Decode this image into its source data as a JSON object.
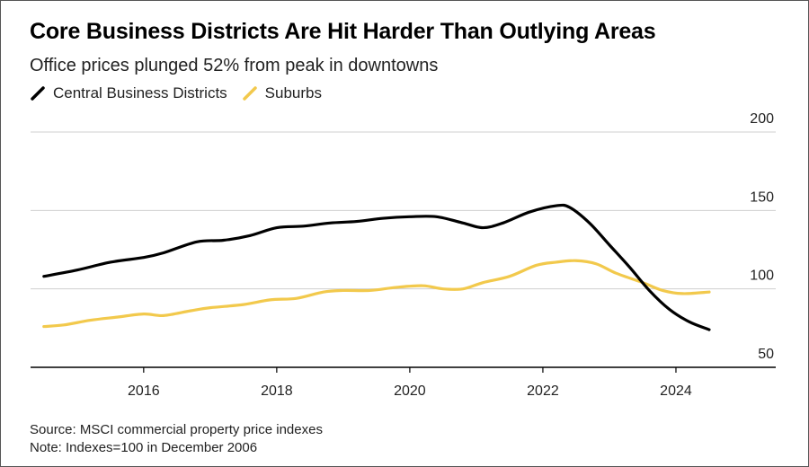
{
  "header": {
    "title": "Core Business Districts Are Hit Harder Than Outlying Areas",
    "subtitle": "Office prices plunged 52% from peak in downtowns"
  },
  "legend": [
    {
      "label": "Central Business Districts",
      "color": "#000000"
    },
    {
      "label": "Suburbs",
      "color": "#f2c94c"
    }
  ],
  "footer": {
    "source": "Source: MSCI commercial property price indexes",
    "note": "Note: Indexes=100 in December 2006"
  },
  "chart_data": {
    "type": "line",
    "title": "Core Business Districts Are Hit Harder Than Outlying Areas",
    "subtitle": "Office prices plunged 52% from peak in downtowns",
    "xlabel": "",
    "ylabel": "",
    "xlim": [
      2014.3,
      2025.5
    ],
    "ylim": [
      50,
      200
    ],
    "x_ticks": [
      2016,
      2018,
      2020,
      2022,
      2024
    ],
    "y_ticks": [
      50,
      100,
      150,
      200
    ],
    "y_axis_position": "right",
    "grid": true,
    "legend_position": "top-left",
    "series": [
      {
        "name": "Central Business Districts",
        "color": "#000000",
        "points": [
          [
            2014.5,
            108
          ],
          [
            2015.0,
            112
          ],
          [
            2015.5,
            117
          ],
          [
            2016.0,
            120
          ],
          [
            2016.3,
            123
          ],
          [
            2016.8,
            130
          ],
          [
            2017.2,
            131
          ],
          [
            2017.6,
            134
          ],
          [
            2018.0,
            139
          ],
          [
            2018.4,
            140
          ],
          [
            2018.8,
            142
          ],
          [
            2019.2,
            143
          ],
          [
            2019.6,
            145
          ],
          [
            2020.0,
            146
          ],
          [
            2020.4,
            146
          ],
          [
            2020.8,
            142
          ],
          [
            2021.1,
            139
          ],
          [
            2021.4,
            142
          ],
          [
            2021.8,
            149
          ],
          [
            2022.2,
            153
          ],
          [
            2022.4,
            152
          ],
          [
            2022.7,
            142
          ],
          [
            2023.0,
            128
          ],
          [
            2023.3,
            114
          ],
          [
            2023.6,
            99
          ],
          [
            2023.9,
            87
          ],
          [
            2024.2,
            79
          ],
          [
            2024.5,
            74
          ]
        ]
      },
      {
        "name": "Suburbs",
        "color": "#f2c94c",
        "points": [
          [
            2014.5,
            76
          ],
          [
            2014.8,
            77
          ],
          [
            2015.2,
            80
          ],
          [
            2015.6,
            82
          ],
          [
            2016.0,
            84
          ],
          [
            2016.3,
            83
          ],
          [
            2016.7,
            86
          ],
          [
            2017.0,
            88
          ],
          [
            2017.5,
            90
          ],
          [
            2017.9,
            93
          ],
          [
            2018.3,
            94
          ],
          [
            2018.7,
            98
          ],
          [
            2019.0,
            99
          ],
          [
            2019.4,
            99
          ],
          [
            2019.8,
            101
          ],
          [
            2020.2,
            102
          ],
          [
            2020.5,
            100
          ],
          [
            2020.8,
            100
          ],
          [
            2021.1,
            104
          ],
          [
            2021.5,
            108
          ],
          [
            2021.9,
            115
          ],
          [
            2022.2,
            117
          ],
          [
            2022.5,
            118
          ],
          [
            2022.8,
            116
          ],
          [
            2023.1,
            110
          ],
          [
            2023.5,
            104
          ],
          [
            2023.8,
            99
          ],
          [
            2024.1,
            97
          ],
          [
            2024.5,
            98
          ]
        ]
      }
    ]
  }
}
